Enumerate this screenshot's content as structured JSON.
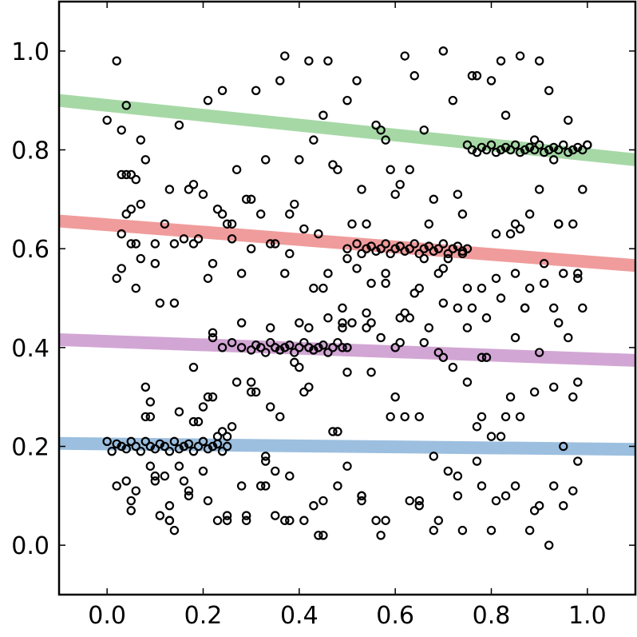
{
  "chart_data": {
    "type": "scatter",
    "title": "",
    "xlabel": "",
    "ylabel": "",
    "xlim": [
      -0.1,
      1.1
    ],
    "ylim": [
      -0.1,
      1.1
    ],
    "xticks": [
      "0.0",
      "0.2",
      "0.4",
      "0.6",
      "0.8",
      "1.0"
    ],
    "xtick_values": [
      0.0,
      0.2,
      0.4,
      0.6,
      0.8,
      1.0
    ],
    "yticks": [
      "0.0",
      "0.2",
      "0.4",
      "0.6",
      "0.8",
      "1.0"
    ],
    "ytick_values": [
      0.0,
      0.2,
      0.4,
      0.6,
      0.8,
      1.0
    ],
    "grid": false,
    "legend": "none",
    "marker": {
      "shape": "open-circle",
      "edge_color": "#000000"
    },
    "lines": [
      {
        "color": "#4a8ac4",
        "x": [
          -0.1,
          1.1
        ],
        "y": [
          0.206,
          0.194
        ]
      },
      {
        "color": "#ad5db0",
        "x": [
          -0.1,
          1.1
        ],
        "y": [
          0.416,
          0.374
        ]
      },
      {
        "color": "#e34a4a",
        "x": [
          -0.1,
          1.1
        ],
        "y": [
          0.656,
          0.566
        ]
      },
      {
        "color": "#5cb85c",
        "x": [
          -0.1,
          1.1
        ],
        "y": [
          0.9,
          0.78
        ]
      }
    ],
    "clusters": [
      {
        "x": [
          0.0,
          0.01,
          0.02,
          0.03,
          0.04,
          0.05,
          0.06,
          0.07,
          0.08,
          0.09,
          0.1,
          0.11,
          0.12,
          0.13,
          0.14,
          0.15,
          0.16,
          0.17,
          0.18,
          0.19,
          0.2,
          0.21,
          0.22,
          0.23,
          0.24,
          0.25
        ],
        "y": [
          0.21,
          0.19,
          0.205,
          0.2,
          0.195,
          0.21,
          0.2,
          0.19,
          0.21,
          0.2,
          0.195,
          0.205,
          0.2,
          0.19,
          0.21,
          0.195,
          0.2,
          0.205,
          0.19,
          0.2,
          0.21,
          0.195,
          0.2,
          0.205,
          0.19,
          0.2
        ]
      },
      {
        "x": [
          0.22,
          0.24,
          0.26,
          0.28,
          0.3,
          0.31,
          0.32,
          0.33,
          0.34,
          0.35,
          0.36,
          0.37,
          0.38,
          0.39,
          0.4,
          0.41,
          0.42,
          0.43,
          0.44,
          0.45,
          0.46,
          0.47,
          0.48,
          0.49,
          0.5
        ],
        "y": [
          0.42,
          0.4,
          0.41,
          0.4,
          0.395,
          0.405,
          0.4,
          0.39,
          0.41,
          0.4,
          0.395,
          0.4,
          0.405,
          0.39,
          0.4,
          0.41,
          0.4,
          0.395,
          0.4,
          0.405,
          0.39,
          0.4,
          0.41,
          0.4,
          0.4
        ]
      },
      {
        "x": [
          0.5,
          0.52,
          0.53,
          0.54,
          0.55,
          0.56,
          0.57,
          0.58,
          0.59,
          0.6,
          0.61,
          0.62,
          0.63,
          0.64,
          0.65,
          0.66,
          0.67,
          0.68,
          0.69,
          0.7,
          0.71,
          0.72,
          0.73,
          0.74,
          0.75
        ],
        "y": [
          0.6,
          0.61,
          0.59,
          0.6,
          0.605,
          0.595,
          0.6,
          0.61,
          0.59,
          0.6,
          0.605,
          0.595,
          0.6,
          0.61,
          0.59,
          0.6,
          0.605,
          0.595,
          0.6,
          0.61,
          0.59,
          0.6,
          0.605,
          0.595,
          0.6
        ]
      },
      {
        "x": [
          0.75,
          0.76,
          0.77,
          0.78,
          0.79,
          0.8,
          0.81,
          0.82,
          0.83,
          0.84,
          0.85,
          0.86,
          0.87,
          0.88,
          0.89,
          0.9,
          0.91,
          0.92,
          0.93,
          0.94,
          0.95,
          0.96,
          0.97,
          0.98,
          0.99,
          1.0
        ],
        "y": [
          0.81,
          0.8,
          0.795,
          0.805,
          0.8,
          0.81,
          0.795,
          0.8,
          0.805,
          0.8,
          0.81,
          0.795,
          0.8,
          0.805,
          0.8,
          0.81,
          0.795,
          0.8,
          0.805,
          0.8,
          0.81,
          0.795,
          0.8,
          0.805,
          0.8,
          0.81
        ]
      }
    ],
    "scatter": {
      "x": [
        0.02,
        0.0,
        0.03,
        0.04,
        0.05,
        0.06,
        0.04,
        0.03,
        0.05,
        0.07,
        0.08,
        0.1,
        0.11,
        0.13,
        0.15,
        0.16,
        0.18,
        0.2,
        0.21,
        0.22,
        0.23,
        0.24,
        0.25,
        0.27,
        0.29,
        0.31,
        0.33,
        0.35,
        0.37,
        0.38,
        0.4,
        0.42,
        0.44,
        0.46,
        0.48,
        0.5,
        0.52,
        0.54,
        0.56,
        0.58,
        0.6,
        0.62,
        0.64,
        0.66,
        0.68,
        0.7,
        0.72,
        0.74,
        0.76,
        0.78,
        0.8,
        0.82,
        0.84,
        0.86,
        0.88,
        0.9,
        0.92,
        0.94,
        0.96,
        0.98,
        1.0,
        0.03,
        0.05,
        0.07,
        0.09,
        0.12,
        0.14,
        0.17,
        0.19,
        0.21,
        0.24,
        0.26,
        0.28,
        0.3,
        0.32,
        0.34,
        0.36,
        0.39,
        0.41,
        0.43,
        0.45,
        0.47,
        0.49,
        0.51,
        0.53,
        0.55,
        0.57,
        0.59,
        0.61,
        0.63,
        0.65,
        0.67,
        0.69,
        0.71,
        0.73,
        0.75,
        0.77,
        0.79,
        0.81,
        0.83,
        0.85,
        0.87,
        0.89,
        0.91,
        0.93,
        0.95,
        0.97,
        0.99,
        0.04,
        0.06,
        0.08,
        0.1,
        0.13,
        0.15,
        0.18,
        0.2,
        0.23,
        0.25,
        0.28,
        0.3,
        0.33,
        0.35,
        0.38,
        0.4,
        0.43,
        0.45,
        0.48,
        0.5,
        0.53,
        0.55,
        0.58,
        0.6,
        0.63,
        0.65,
        0.68,
        0.7,
        0.73,
        0.75,
        0.78,
        0.8,
        0.83,
        0.85,
        0.88,
        0.9,
        0.93,
        0.95,
        0.98,
        0.02,
        0.05,
        0.08,
        0.11,
        0.14,
        0.17,
        0.2,
        0.23,
        0.26,
        0.29,
        0.32,
        0.35,
        0.38,
        0.41,
        0.44,
        0.47,
        0.5,
        0.53,
        0.56,
        0.59,
        0.62,
        0.65,
        0.68,
        0.71,
        0.74,
        0.77,
        0.8,
        0.83,
        0.86,
        0.89,
        0.92,
        0.95,
        0.98,
        0.03,
        0.06,
        0.09,
        0.12,
        0.15,
        0.18,
        0.21,
        0.24,
        0.27,
        0.3,
        0.33,
        0.36,
        0.39,
        0.42,
        0.45,
        0.48,
        0.51,
        0.54,
        0.57,
        0.6,
        0.63,
        0.66,
        0.69,
        0.72,
        0.75,
        0.78,
        0.81,
        0.84,
        0.87,
        0.9,
        0.93,
        0.96,
        0.99,
        0.04,
        0.07,
        0.1,
        0.13,
        0.16,
        0.19,
        0.22,
        0.25,
        0.28,
        0.31,
        0.34,
        0.37,
        0.4,
        0.43,
        0.46,
        0.49,
        0.52,
        0.55,
        0.58,
        0.61,
        0.64,
        0.67,
        0.7,
        0.73,
        0.76,
        0.79,
        0.82,
        0.85,
        0.88,
        0.91,
        0.94,
        0.97,
        0.02,
        0.06,
        0.1,
        0.14,
        0.18,
        0.22,
        0.26,
        0.3,
        0.34,
        0.38,
        0.42,
        0.46,
        0.5,
        0.54,
        0.58,
        0.62,
        0.66,
        0.7,
        0.74,
        0.78,
        0.82,
        0.86,
        0.9,
        0.94,
        0.98,
        0.05,
        0.09,
        0.13,
        0.17,
        0.21,
        0.25,
        0.29,
        0.33,
        0.37,
        0.41,
        0.45,
        0.49,
        0.53,
        0.57,
        0.61,
        0.65,
        0.69,
        0.73,
        0.77,
        0.81,
        0.85,
        0.89,
        0.93,
        0.97
      ],
      "y": [
        0.98,
        0.86,
        0.84,
        0.89,
        0.75,
        0.74,
        0.67,
        0.63,
        0.61,
        0.69,
        0.78,
        0.57,
        0.49,
        0.72,
        0.85,
        0.62,
        0.73,
        0.71,
        0.9,
        0.43,
        0.68,
        0.92,
        0.65,
        0.76,
        0.7,
        0.92,
        0.78,
        0.61,
        0.99,
        0.67,
        0.78,
        0.98,
        0.63,
        0.98,
        0.76,
        0.9,
        0.94,
        0.65,
        0.85,
        0.82,
        0.71,
        0.99,
        0.95,
        0.84,
        0.7,
        1.0,
        0.9,
        0.67,
        0.95,
        0.52,
        0.94,
        0.98,
        0.63,
        0.99,
        0.67,
        0.98,
        0.92,
        0.65,
        0.86,
        0.55,
        0.81,
        0.75,
        0.68,
        0.82,
        0.26,
        0.65,
        0.49,
        0.72,
        0.62,
        0.54,
        0.67,
        0.62,
        0.55,
        0.7,
        0.67,
        0.61,
        0.94,
        0.69,
        0.64,
        0.82,
        0.87,
        0.77,
        0.48,
        0.65,
        0.72,
        0.53,
        0.84,
        0.76,
        0.73,
        0.76,
        0.52,
        0.65,
        0.55,
        0.58,
        0.71,
        0.52,
        0.95,
        0.46,
        0.63,
        0.87,
        0.65,
        0.48,
        0.82,
        0.53,
        0.78,
        0.55,
        0.65,
        0.72,
        0.13,
        0.11,
        0.26,
        0.14,
        0.05,
        0.27,
        0.25,
        0.15,
        0.05,
        0.22,
        0.12,
        0.33,
        0.18,
        0.06,
        0.14,
        0.36,
        0.08,
        0.02,
        0.12,
        0.16,
        0.1,
        0.35,
        0.05,
        0.3,
        0.09,
        0.26,
        0.18,
        0.38,
        0.14,
        0.33,
        0.12,
        0.22,
        0.26,
        0.12,
        0.03,
        0.08,
        0.12,
        0.2,
        0.17,
        0.12,
        0.07,
        0.32,
        0.06,
        0.03,
        0.1,
        0.28,
        0.22,
        0.24,
        0.05,
        0.12,
        0.15,
        0.05,
        0.31,
        0.02,
        0.23,
        0.35,
        0.1,
        0.05,
        0.26,
        0.26,
        0.08,
        0.03,
        0.15,
        0.03,
        0.17,
        0.03,
        0.1,
        0.26,
        0.07,
        0.0,
        0.08,
        0.33,
        0.56,
        0.52,
        0.29,
        0.14,
        0.16,
        0.36,
        0.3,
        0.23,
        0.33,
        0.31,
        0.17,
        0.26,
        0.37,
        0.44,
        0.52,
        0.23,
        0.45,
        0.47,
        0.42,
        0.4,
        0.46,
        0.41,
        0.39,
        0.36,
        0.44,
        0.38,
        0.54,
        0.3,
        0.48,
        0.39,
        0.48,
        0.42,
        0.48,
        0.75,
        0.58,
        0.13,
        0.05,
        0.13,
        0.25,
        0.3,
        0.05,
        0.45,
        0.31,
        0.44,
        0.55,
        0.45,
        0.52,
        0.55,
        0.44,
        0.56,
        0.45,
        0.55,
        0.41,
        0.51,
        0.44,
        0.56,
        0.48,
        0.48,
        0.38,
        0.5,
        0.55,
        0.52,
        0.57,
        0.45,
        0.3,
        0.54,
        0.61,
        0.61,
        0.61,
        0.61,
        0.57,
        0.65,
        0.6,
        0.28,
        0.59,
        0.32,
        0.46,
        0.58,
        0.44,
        0.53,
        0.47,
        0.58,
        0.49,
        0.59,
        0.26,
        0.22,
        0.64,
        0.72,
        0.65,
        0.54,
        0.09,
        0.16,
        0.08,
        0.11,
        0.09,
        0.06,
        0.06,
        0.12,
        0.05,
        0.05,
        0.09,
        0.45,
        0.09,
        0.02,
        0.46,
        0.09,
        0.05,
        0.1,
        0.24,
        0.09,
        0.42,
        0.31,
        0.32,
        0.11
      ]
    }
  }
}
